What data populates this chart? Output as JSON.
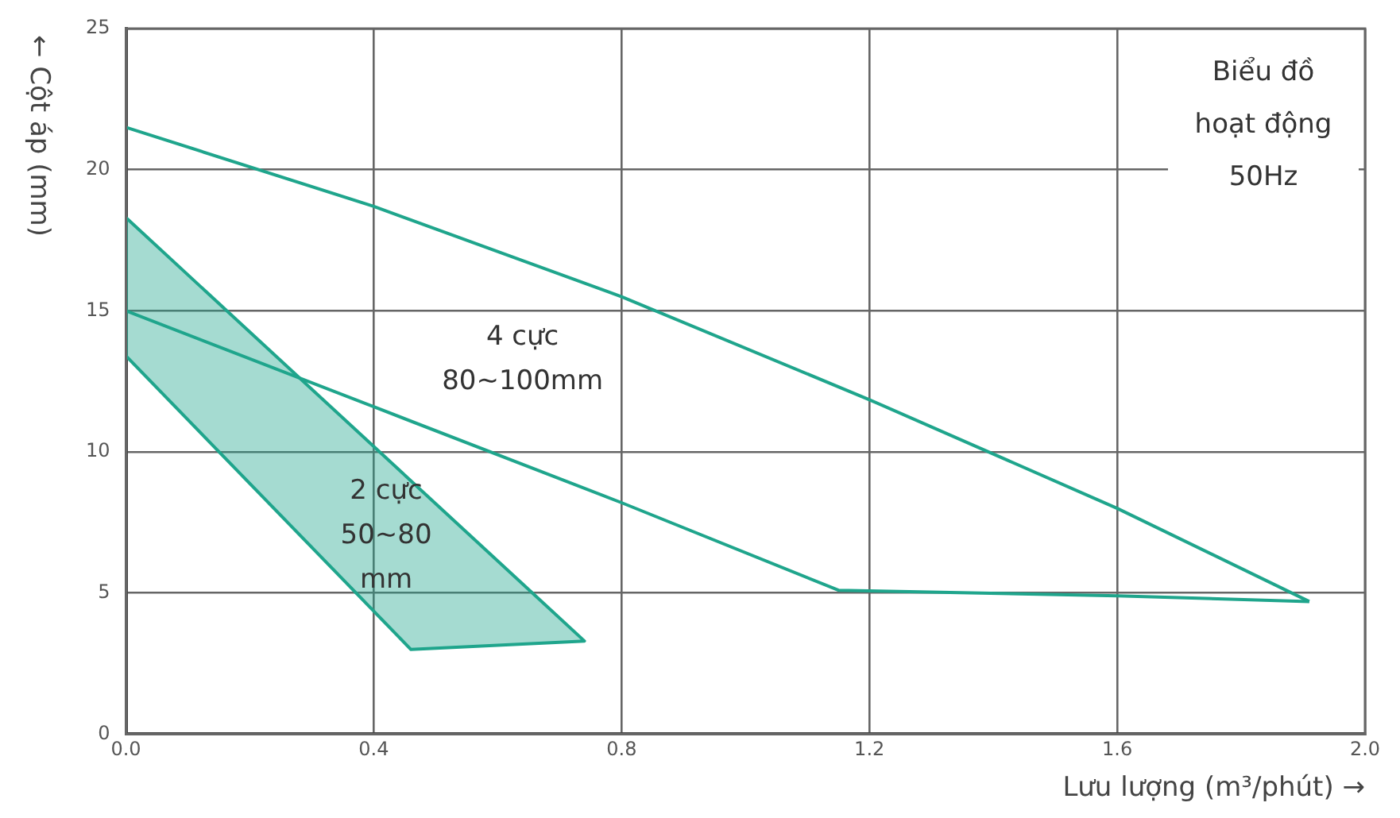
{
  "chart_data": {
    "type": "line",
    "title": "Biểu đồ hoạt động 50Hz",
    "xlabel": "Lưu lượng (m³/phút) →",
    "ylabel": "← Cột áp (mm)",
    "xlim": [
      0,
      2
    ],
    "xticks": [
      {
        "value": 0,
        "label": "0.0"
      },
      0.4,
      0.8,
      1.2,
      1.6,
      {
        "value": 2,
        "label": "2.0"
      }
    ],
    "ylim": [
      0,
      25
    ],
    "yticks": [
      0,
      5,
      10,
      15,
      20,
      25
    ],
    "grid": true,
    "legend": false,
    "marker": "none",
    "line_style": "solid",
    "annotations": [
      "4 cực 80~100mm",
      "2 cực 50~80 mm"
    ],
    "series": [
      {
        "type": "line",
        "color": "#1fa58c",
        "x": [
          0,
          0.4,
          0.8,
          1.2,
          1.6,
          1.91
        ],
        "values": [
          21.5,
          18.7,
          15.5,
          11.85,
          8.0,
          4.7
        ]
      },
      {
        "type": "line",
        "color": "#1fa58c",
        "x": [
          0,
          0.4,
          0.8,
          1.15,
          1.6,
          1.91
        ],
        "values": [
          15,
          11.6,
          8.2,
          5.1,
          4.9,
          4.7
        ]
      },
      {
        "type": "area",
        "color": "#1fa58c",
        "x": [
          0,
          0.74,
          0.46,
          0,
          0
        ],
        "values": [
          18.3,
          3.3,
          3.0,
          13.4,
          18.3
        ]
      }
    ]
  }
}
